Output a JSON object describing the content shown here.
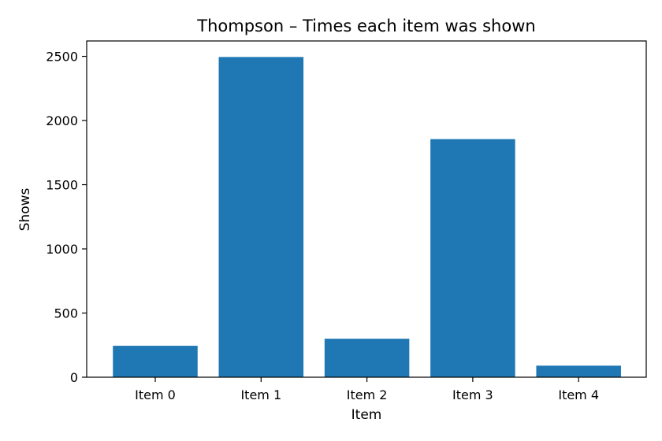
{
  "chart_data": {
    "type": "bar",
    "title": "Thompson – Times each item was shown",
    "xlabel": "Item",
    "ylabel": "Shows",
    "categories": [
      "Item 0",
      "Item 1",
      "Item 2",
      "Item 3",
      "Item 4"
    ],
    "values": [
      245,
      2495,
      300,
      1855,
      90
    ],
    "ylim": [
      0,
      2620
    ],
    "yticks": [
      0,
      500,
      1000,
      1500,
      2000,
      2500
    ],
    "bar_color": "#1f77b4",
    "grid": false,
    "legend": "none"
  }
}
